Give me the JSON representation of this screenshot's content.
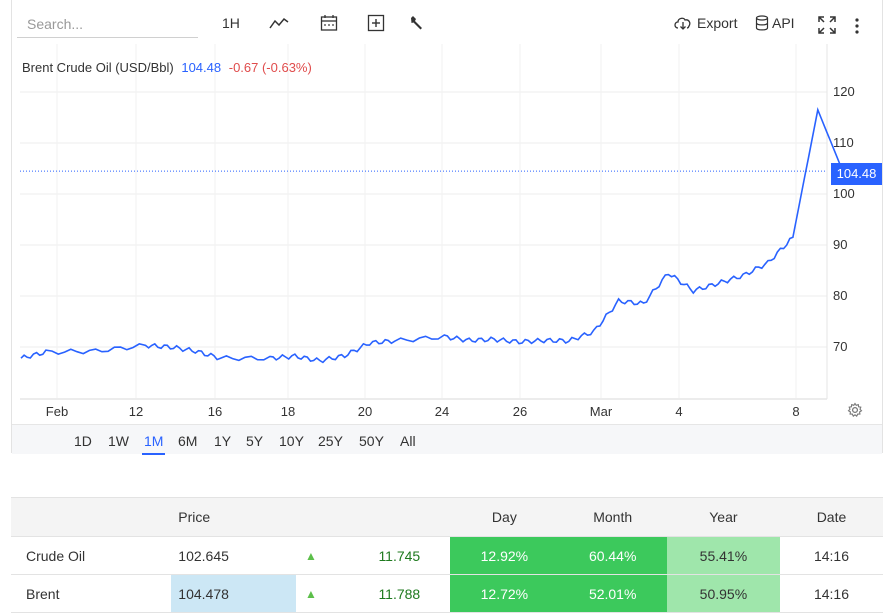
{
  "toolbar": {
    "search_placeholder": "Search...",
    "interval_label": "1H",
    "export_label": "Export",
    "api_label": "API",
    "icons": [
      "chart-type-icon",
      "calendar-icon",
      "add-indicator-icon",
      "wrench-icon",
      "cloud-download-icon",
      "database-icon",
      "fullscreen-icon",
      "more-vertical-icon"
    ]
  },
  "legend": {
    "name": "Brent Crude Oil (USD/Bbl)",
    "last": "104.48",
    "change": "-0.67 (-0.63%)"
  },
  "colors": {
    "accent": "#2962ff",
    "negative": "#e04c4c",
    "positive": "#1f7a1f"
  },
  "chart_data": {
    "type": "line",
    "series_name": "Brent Crude Oil (USD/Bbl)",
    "last_value": "104.48",
    "y_ticks": [
      "120",
      "110",
      "100",
      "90",
      "80",
      "70"
    ],
    "ylim": [
      62,
      122
    ],
    "x_ticks": [
      "Feb",
      "12",
      "16",
      "18",
      "20",
      "24",
      "26",
      "Mar",
      "4",
      "8"
    ],
    "points": [
      [
        "Feb 6",
        67.8
      ],
      [
        "Feb 7",
        69.0
      ],
      [
        "Feb 9",
        69.2
      ],
      [
        "Feb 11",
        70.3
      ],
      [
        "Feb 12",
        70.0
      ],
      [
        "Feb 13",
        69.2
      ],
      [
        "Feb 14",
        67.8
      ],
      [
        "Feb 16",
        67.8
      ],
      [
        "Feb 17",
        68.2
      ],
      [
        "Feb 18",
        67.3
      ],
      [
        "Feb 19",
        68.3
      ],
      [
        "Feb 20",
        70.8
      ],
      [
        "Feb 21",
        71.2
      ],
      [
        "Feb 23",
        72.0
      ],
      [
        "Feb 24",
        71.3
      ],
      [
        "Feb 25",
        71.5
      ],
      [
        "Feb 26",
        71.0
      ],
      [
        "Feb 27",
        71.3
      ],
      [
        "Feb 28",
        71.2
      ],
      [
        "Mar 1",
        73.0
      ],
      [
        "Mar 2",
        79.0
      ],
      [
        "Mar 3",
        78.5
      ],
      [
        "Mar 4",
        84.5
      ],
      [
        "Mar 5",
        81.0
      ],
      [
        "Mar 6",
        82.5
      ],
      [
        "Mar 7",
        84.0
      ],
      [
        "Mar 8",
        86.5
      ],
      [
        "Mar 9",
        91.5
      ],
      [
        "Mar 10",
        116.5
      ],
      [
        "Mar 11",
        104.48
      ]
    ]
  },
  "ranges": [
    "1D",
    "1W",
    "1M",
    "6M",
    "1Y",
    "5Y",
    "10Y",
    "25Y",
    "50Y",
    "All"
  ],
  "active_range": "1M",
  "table": {
    "headers": [
      "",
      "Price",
      "",
      "",
      "Day",
      "Month",
      "Year",
      "Date"
    ],
    "rows": [
      {
        "name": "Crude Oil",
        "price": "102.645",
        "change": "11.745",
        "day": "12.92%",
        "month": "60.44%",
        "year": "55.41%",
        "date": "14:16"
      },
      {
        "name": "Brent",
        "price": "104.478",
        "change": "11.788",
        "day": "12.72%",
        "month": "52.01%",
        "year": "50.95%",
        "date": "14:16"
      }
    ]
  }
}
